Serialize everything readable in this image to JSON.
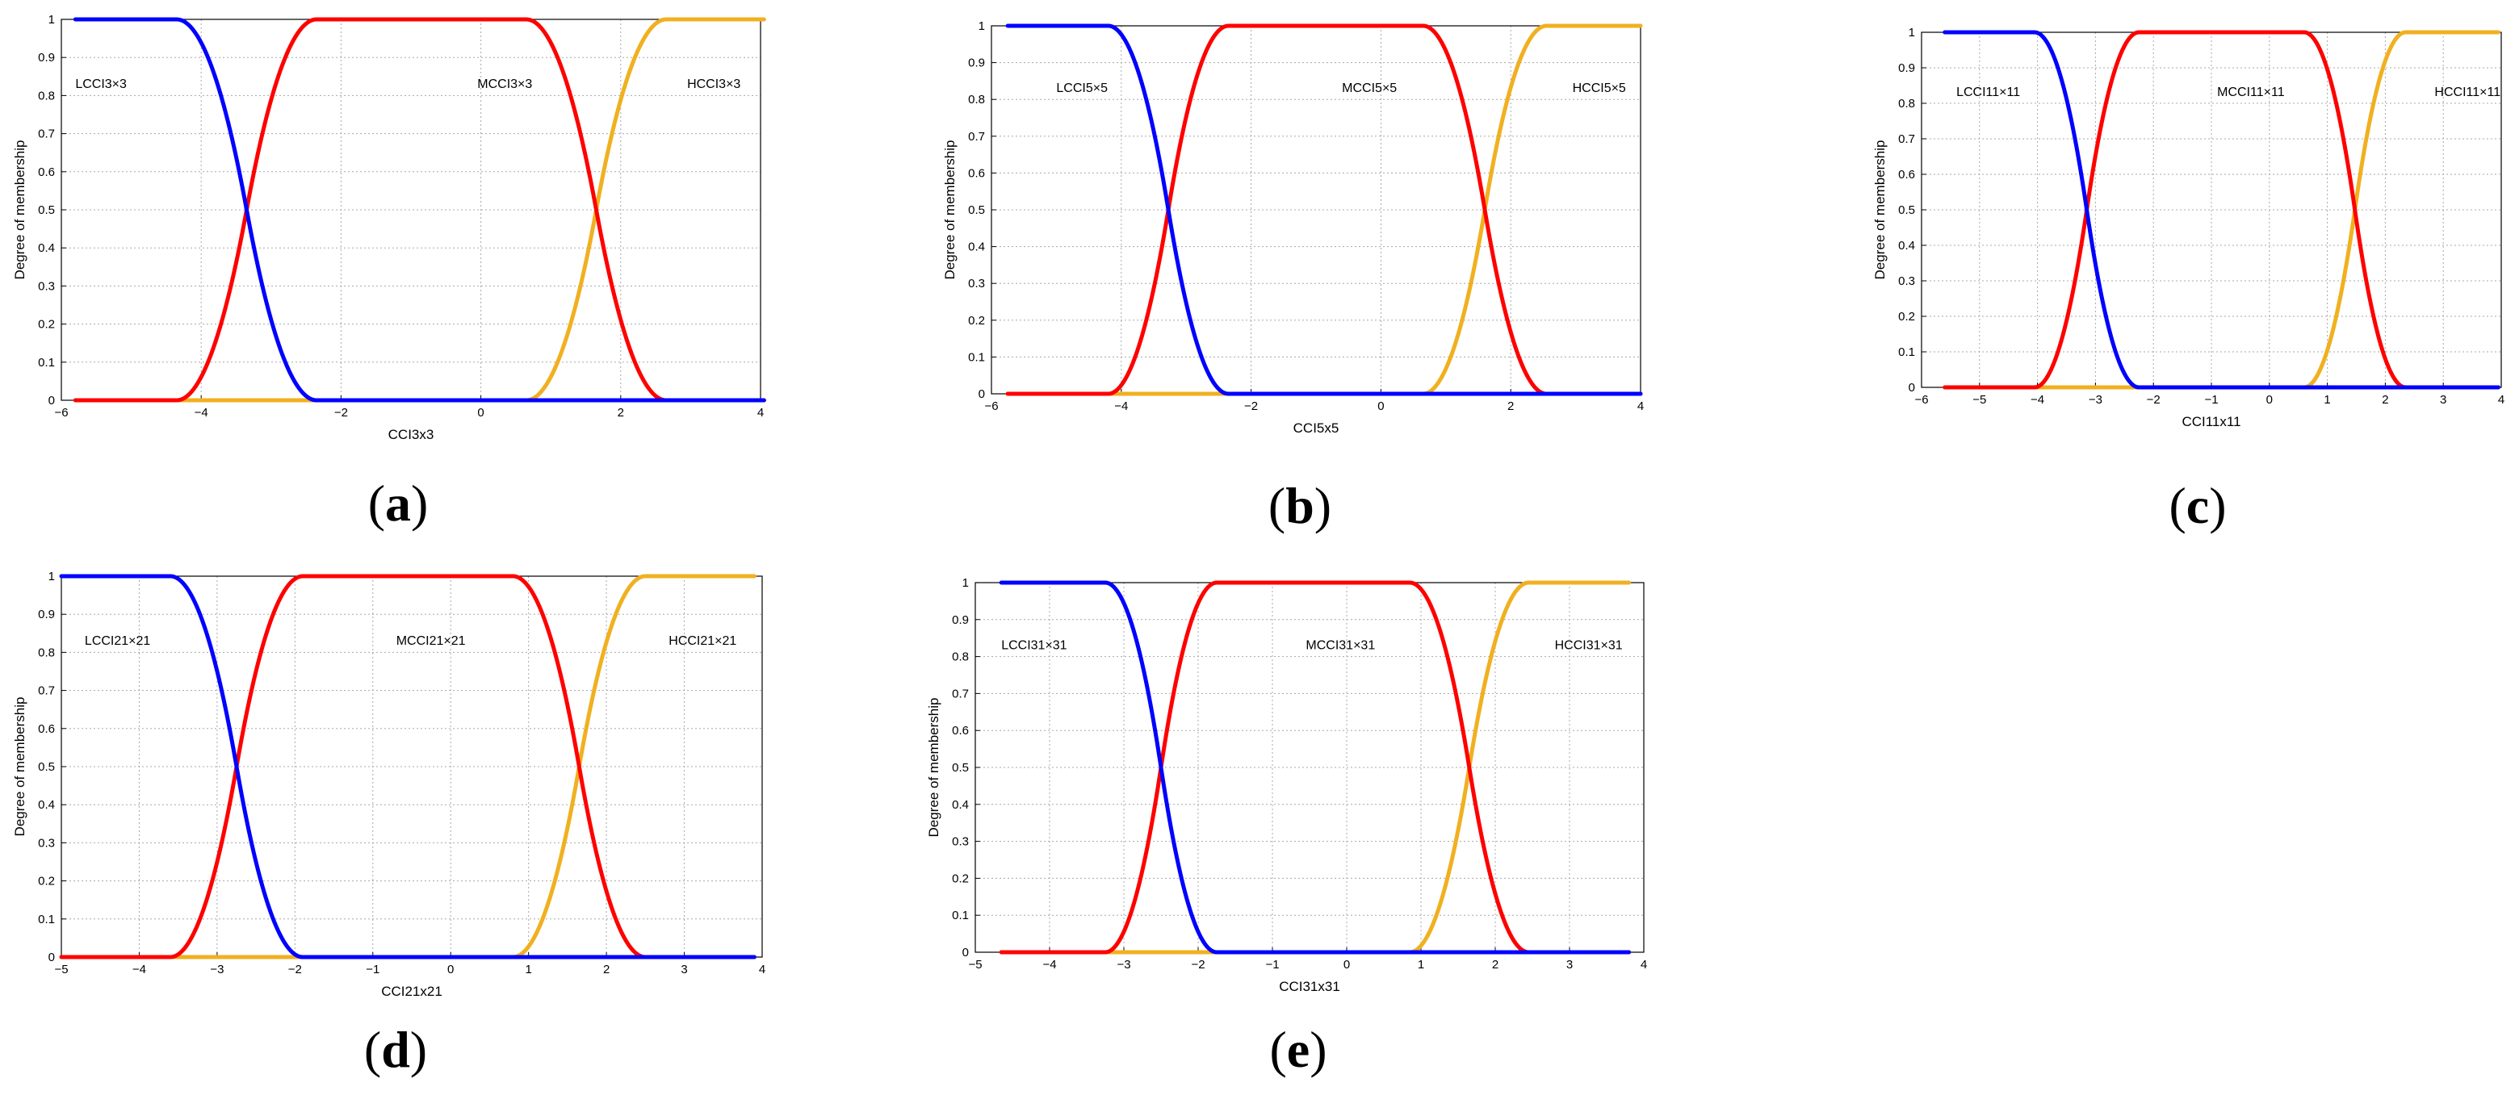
{
  "figure": {
    "series_colors": [
      "#0000ff",
      "#ff0000",
      "#f0b020"
    ]
  },
  "chart_data": [
    {
      "type": "line",
      "panel": "a",
      "xlabel": "CCI3x3",
      "ylabel": "Degree of membership",
      "xlim": [
        -6,
        4
      ],
      "ylim": [
        0,
        1
      ],
      "xticks": [
        -6,
        -4,
        -2,
        0,
        2,
        4
      ],
      "yticks": [
        0,
        0.1,
        0.2,
        0.3,
        0.4,
        0.5,
        0.6,
        0.7,
        0.8,
        0.9,
        1
      ],
      "grid": true,
      "series": [
        {
          "name": "LCCI3×3",
          "shape": "z",
          "params": [
            -5.8,
            -4.35,
            -2.35
          ],
          "label_at": [
            -5.8,
            0.82
          ]
        },
        {
          "name": "MCCI3×3",
          "shape": "pi",
          "params": [
            -5.8,
            -4.35,
            -2.35,
            0.65,
            2.65,
            4.05
          ],
          "label_at": [
            -0.05,
            0.82
          ]
        },
        {
          "name": "HCCI3×3",
          "shape": "s",
          "params": [
            0.65,
            2.65,
            4.05
          ],
          "label_at": [
            2.95,
            0.82
          ]
        }
      ]
    },
    {
      "type": "line",
      "panel": "b",
      "xlabel": "CCI5x5",
      "ylabel": "Degree of membership",
      "xlim": [
        -6,
        4
      ],
      "ylim": [
        0,
        1
      ],
      "xticks": [
        -6,
        -4,
        -2,
        0,
        2,
        4
      ],
      "yticks": [
        0,
        0.1,
        0.2,
        0.3,
        0.4,
        0.5,
        0.6,
        0.7,
        0.8,
        0.9,
        1
      ],
      "grid": true,
      "series": [
        {
          "name": "LCCI5×5",
          "shape": "z",
          "params": [
            -5.75,
            -4.2,
            -2.35
          ],
          "label_at": [
            -5.0,
            0.82
          ]
        },
        {
          "name": "MCCI5×5",
          "shape": "pi",
          "params": [
            -5.75,
            -4.2,
            -2.35,
            0.65,
            2.55,
            4.0
          ],
          "label_at": [
            -0.6,
            0.82
          ]
        },
        {
          "name": "HCCI5×5",
          "shape": "s",
          "params": [
            0.65,
            2.55,
            4.0
          ],
          "label_at": [
            2.95,
            0.82
          ]
        }
      ]
    },
    {
      "type": "line",
      "panel": "c",
      "xlabel": "CCI11x11",
      "ylabel": "Degree of membership",
      "xlim": [
        -6,
        4
      ],
      "ylim": [
        0,
        1
      ],
      "xticks": [
        -6,
        -5,
        -4,
        -3,
        -2,
        -1,
        0,
        1,
        2,
        3,
        4
      ],
      "yticks": [
        0,
        0.1,
        0.2,
        0.3,
        0.4,
        0.5,
        0.6,
        0.7,
        0.8,
        0.9,
        1
      ],
      "grid": true,
      "series": [
        {
          "name": "LCCI11×11",
          "shape": "z",
          "params": [
            -5.6,
            -4.05,
            -2.25
          ],
          "label_at": [
            -5.4,
            0.82
          ]
        },
        {
          "name": "MCCI11×11",
          "shape": "pi",
          "params": [
            -5.6,
            -4.05,
            -2.25,
            0.6,
            2.35,
            3.95
          ],
          "label_at": [
            -0.9,
            0.82
          ]
        },
        {
          "name": "HCCI11×11",
          "shape": "s",
          "params": [
            0.6,
            2.35,
            3.95
          ],
          "label_at": [
            2.85,
            0.82
          ]
        }
      ]
    },
    {
      "type": "line",
      "panel": "d",
      "xlabel": "CCI21x21",
      "ylabel": "Degree of membership",
      "xlim": [
        -5,
        4
      ],
      "ylim": [
        0,
        1
      ],
      "xticks": [
        -5,
        -4,
        -3,
        -2,
        -1,
        0,
        1,
        2,
        3,
        4
      ],
      "yticks": [
        0,
        0.1,
        0.2,
        0.3,
        0.4,
        0.5,
        0.6,
        0.7,
        0.8,
        0.9,
        1
      ],
      "grid": true,
      "series": [
        {
          "name": "LCCI21×21",
          "shape": "z",
          "params": [
            -5.0,
            -3.6,
            -1.9
          ],
          "label_at": [
            -4.7,
            0.82
          ]
        },
        {
          "name": "MCCI21×21",
          "shape": "pi",
          "params": [
            -5.0,
            -3.6,
            -1.9,
            0.8,
            2.5,
            3.9
          ],
          "label_at": [
            -0.7,
            0.82
          ]
        },
        {
          "name": "HCCI21×21",
          "shape": "s",
          "params": [
            0.8,
            2.5,
            3.9
          ],
          "label_at": [
            2.8,
            0.82
          ]
        }
      ]
    },
    {
      "type": "line",
      "panel": "e",
      "xlabel": "CCI31x31",
      "ylabel": "Degree of membership",
      "xlim": [
        -5,
        4
      ],
      "ylim": [
        0,
        1
      ],
      "xticks": [
        -5,
        -4,
        -3,
        -2,
        -1,
        0,
        1,
        2,
        3,
        4
      ],
      "yticks": [
        0,
        0.1,
        0.2,
        0.3,
        0.4,
        0.5,
        0.6,
        0.7,
        0.8,
        0.9,
        1
      ],
      "grid": true,
      "series": [
        {
          "name": "LCCI31×31",
          "shape": "z",
          "params": [
            -4.65,
            -3.25,
            -1.75
          ],
          "label_at": [
            -4.65,
            0.82
          ]
        },
        {
          "name": "MCCI31×31",
          "shape": "pi",
          "params": [
            -4.65,
            -3.25,
            -1.75,
            0.85,
            2.45,
            3.8
          ],
          "label_at": [
            -0.55,
            0.82
          ]
        },
        {
          "name": "HCCI31×31",
          "shape": "s",
          "params": [
            0.85,
            2.45,
            3.8
          ],
          "label_at": [
            2.8,
            0.82
          ]
        }
      ]
    }
  ]
}
